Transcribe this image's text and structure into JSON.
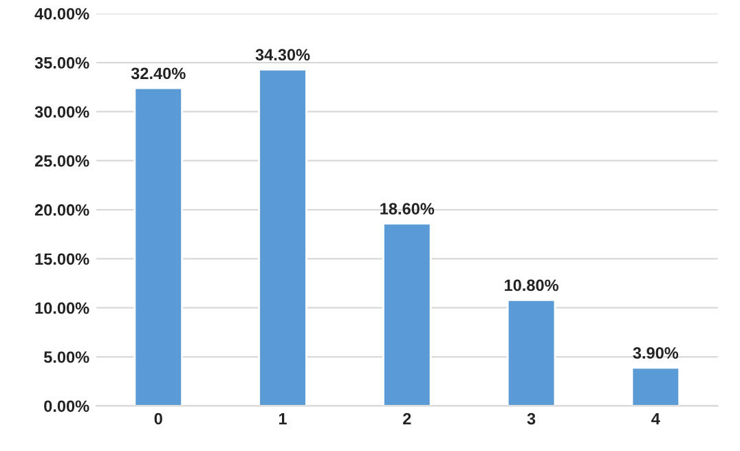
{
  "chart_data": {
    "type": "bar",
    "categories": [
      "0",
      "1",
      "2",
      "3",
      "4"
    ],
    "values": [
      32.4,
      34.3,
      18.6,
      10.8,
      3.9
    ],
    "value_labels": [
      "32.40%",
      "34.30%",
      "18.60%",
      "10.80%",
      "3.90%"
    ],
    "color": "#5b9bd5",
    "ylim": [
      0,
      40
    ],
    "yticks": [
      {
        "value": 0,
        "label": "0.00%"
      },
      {
        "value": 5,
        "label": "5.00%"
      },
      {
        "value": 10,
        "label": "10.00%"
      },
      {
        "value": 15,
        "label": "15.00%"
      },
      {
        "value": 20,
        "label": "20.00%"
      },
      {
        "value": 25,
        "label": "25.00%"
      },
      {
        "value": 30,
        "label": "30.00%"
      },
      {
        "value": 35,
        "label": "35.00%"
      },
      {
        "value": 40,
        "label": "40.00%"
      }
    ],
    "grid": "y",
    "legend": false
  }
}
